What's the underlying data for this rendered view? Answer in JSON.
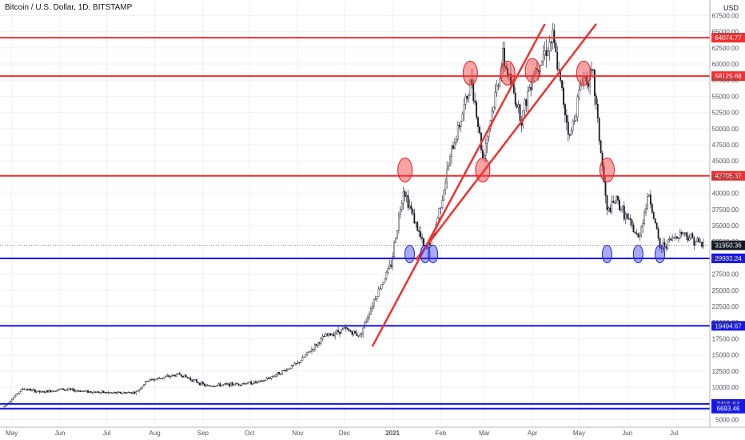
{
  "header": {
    "title": "Bitcoin / U.S. Dollar, 1D, BITSTAMP",
    "currency": "USD"
  },
  "colors": {
    "resistance": "#f23030",
    "support": "#1515ee",
    "candle": "#131722",
    "grid": "#eef0f4",
    "axis_text": "#50535e"
  },
  "chart_data": {
    "type": "line",
    "title": "Bitcoin / U.S. Dollar, 1D, BITSTAMP",
    "ylabel": "USD",
    "ylim": [
      4800,
      67800
    ],
    "grid": true,
    "y_ticks": [
      "5000.00",
      "7500.00",
      "10000.00",
      "12500.00",
      "15000.00",
      "17500.00",
      "20000.00",
      "22500.00",
      "25000.00",
      "27500.00",
      "30000.00",
      "32500.00",
      "35000.00",
      "37500.00",
      "40000.00",
      "42500.00",
      "45000.00",
      "47500.00",
      "50000.00",
      "52500.00",
      "55000.00",
      "57500.00",
      "60000.00",
      "62500.00",
      "65000.00",
      "67500.00"
    ],
    "x_ticks": [
      {
        "label": "May",
        "date": "2020-05-01"
      },
      {
        "label": "Jun",
        "date": "2020-06-01"
      },
      {
        "label": "Jul",
        "date": "2020-07-01"
      },
      {
        "label": "Aug",
        "date": "2020-08-01"
      },
      {
        "label": "Sep",
        "date": "2020-09-01"
      },
      {
        "label": "Oct",
        "date": "2020-10-01"
      },
      {
        "label": "Nov",
        "date": "2020-11-01"
      },
      {
        "label": "Dec",
        "date": "2020-12-01"
      },
      {
        "label": "2021",
        "date": "2021-01-01"
      },
      {
        "label": "Feb",
        "date": "2021-02-01"
      },
      {
        "label": "Mar",
        "date": "2021-03-01"
      },
      {
        "label": "Apr",
        "date": "2021-04-01"
      },
      {
        "label": "May",
        "date": "2021-05-01"
      },
      {
        "label": "Jun",
        "date": "2021-06-01"
      },
      {
        "label": "Jul",
        "date": "2021-07-01"
      }
    ],
    "series": [
      {
        "values": [
          [
            "2020-04-26",
            7000
          ],
          [
            "2020-05-08",
            9800
          ],
          [
            "2020-05-20",
            9200
          ],
          [
            "2020-06-02",
            9700
          ],
          [
            "2020-06-20",
            9300
          ],
          [
            "2020-07-05",
            9100
          ],
          [
            "2020-07-20",
            9200
          ],
          [
            "2020-07-27",
            11000
          ],
          [
            "2020-08-17",
            12000
          ],
          [
            "2020-09-03",
            10200
          ],
          [
            "2020-09-23",
            10500
          ],
          [
            "2020-10-08",
            10800
          ],
          [
            "2020-10-21",
            12300
          ],
          [
            "2020-11-01",
            13700
          ],
          [
            "2020-11-18",
            17800
          ],
          [
            "2020-12-01",
            19000
          ],
          [
            "2020-12-11",
            18000
          ],
          [
            "2020-12-20",
            23500
          ],
          [
            "2020-12-31",
            29000
          ],
          [
            "2021-01-08",
            40800
          ],
          [
            "2021-01-22",
            31000
          ],
          [
            "2021-01-28",
            34000
          ],
          [
            "2021-02-08",
            46500
          ],
          [
            "2021-02-21",
            57500
          ],
          [
            "2021-02-28",
            45500
          ],
          [
            "2021-03-13",
            61000
          ],
          [
            "2021-03-25",
            51500
          ],
          [
            "2021-04-01",
            58500
          ],
          [
            "2021-04-14",
            64000
          ],
          [
            "2021-04-25",
            48500
          ],
          [
            "2021-05-03",
            57800
          ],
          [
            "2021-05-10",
            58000
          ],
          [
            "2021-05-19",
            37000
          ],
          [
            "2021-05-25",
            39000
          ],
          [
            "2021-06-08",
            33000
          ],
          [
            "2021-06-15",
            40000
          ],
          [
            "2021-06-22",
            31500
          ],
          [
            "2021-07-06",
            34000
          ],
          [
            "2021-07-20",
            31950
          ]
        ]
      }
    ],
    "horizontal_levels": [
      {
        "value": 64074.77,
        "label": "64074.77",
        "color": "#f23030"
      },
      {
        "value": 58125.68,
        "label": "58125.68",
        "color": "#f23030"
      },
      {
        "value": 42705.37,
        "label": "42705.37",
        "color": "#f23030"
      },
      {
        "value": 29933.24,
        "label": "29933.24",
        "color": "#1515ee"
      },
      {
        "value": 19494.67,
        "label": "19494.67",
        "color": "#1515ee"
      },
      {
        "value": 7415.64,
        "label": "7415.64",
        "color": "#1515ee"
      },
      {
        "value": 6693.46,
        "label": "6693.46",
        "color": "#1515ee"
      }
    ],
    "last_price": {
      "value": 31950.36,
      "label": "31950.36"
    },
    "trend_lines": [
      {
        "from": [
          "2020-12-19",
          16300
        ],
        "to": [
          "2021-04-09",
          66200
        ],
        "color": "#f23030"
      },
      {
        "from": [
          "2021-01-16",
          29700
        ],
        "to": [
          "2021-05-12",
          66200
        ],
        "color": "#f23030"
      }
    ],
    "markers": [
      {
        "date": "2021-01-09",
        "value": 43600,
        "kind": "resistance"
      },
      {
        "date": "2021-02-20",
        "value": 58600,
        "kind": "resistance"
      },
      {
        "date": "2021-02-28",
        "value": 43600,
        "kind": "resistance"
      },
      {
        "date": "2021-03-16",
        "value": 58600,
        "kind": "resistance"
      },
      {
        "date": "2021-04-01",
        "value": 59000,
        "kind": "resistance"
      },
      {
        "date": "2021-05-04",
        "value": 58600,
        "kind": "resistance"
      },
      {
        "date": "2021-05-19",
        "value": 43600,
        "kind": "resistance"
      },
      {
        "date": "2021-01-12",
        "value": 30600,
        "kind": "support"
      },
      {
        "date": "2021-01-22",
        "value": 30600,
        "kind": "support"
      },
      {
        "date": "2021-01-27",
        "value": 30600,
        "kind": "support"
      },
      {
        "date": "2021-05-19",
        "value": 30600,
        "kind": "support"
      },
      {
        "date": "2021-06-08",
        "value": 30600,
        "kind": "support"
      },
      {
        "date": "2021-06-22",
        "value": 30600,
        "kind": "support"
      }
    ]
  }
}
